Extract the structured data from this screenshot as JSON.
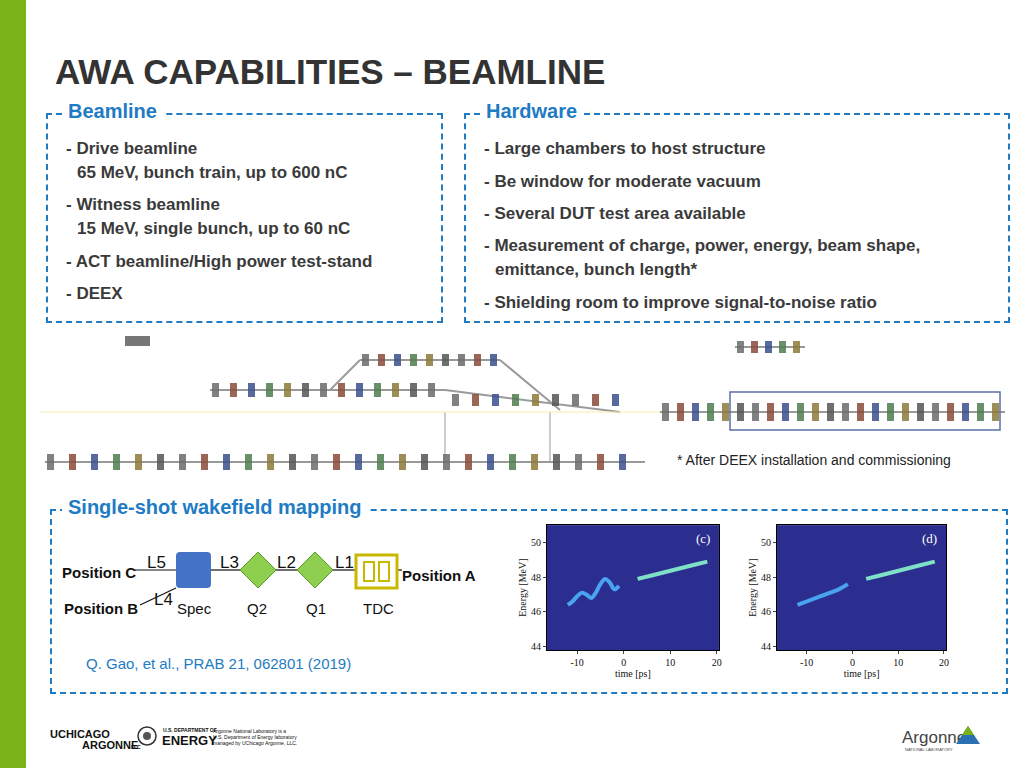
{
  "header": {
    "title": "AWA CAPABILITIES – BEAMLINE"
  },
  "beamline": {
    "title": "Beamline",
    "items": [
      {
        "lines": [
          "- Drive beamline",
          "65 MeV, bunch train, up to 600 nC"
        ]
      },
      {
        "lines": [
          "- Witness beamline",
          "15 MeV, single bunch, up to 60 nC"
        ]
      },
      {
        "lines": [
          "- ACT beamline/High power test-stand"
        ]
      },
      {
        "lines": [
          "- DEEX"
        ]
      }
    ]
  },
  "hardware": {
    "title": "Hardware",
    "items": [
      {
        "lines": [
          "- Large chambers to host structure"
        ]
      },
      {
        "lines": [
          "- Be window for moderate vacuum"
        ]
      },
      {
        "lines": [
          "- Several DUT test area available"
        ]
      },
      {
        "lines": [
          "- Measurement of charge, power, energy, beam shape,",
          "emittance, bunch length*"
        ]
      },
      {
        "lines": [
          "- Shielding room to improve signal-to-noise ratio"
        ]
      }
    ]
  },
  "footnote": "* After DEEX installation and commissioning",
  "wakefield": {
    "title": "Single-shot wakefield mapping",
    "diagram": {
      "positions": {
        "c": "Position C",
        "b": "Position B",
        "a": "Position A"
      },
      "segments": {
        "l5": "L5",
        "l4": "L4",
        "l3": "L3",
        "l2": "L2",
        "l1": "L1"
      },
      "elements": {
        "spec": "Spec",
        "q2": "Q2",
        "q1": "Q1",
        "tdc": "TDC"
      }
    },
    "citation": "Q. Gao, et al., PRAB 21, 062801 (2019)"
  },
  "chart_data": [
    {
      "type": "line",
      "title": "(c)",
      "xlabel": "time [ps]",
      "ylabel": "Energy [MeV]",
      "xlim": [
        -16.5,
        20.5
      ],
      "ylim": [
        43.8,
        51
      ],
      "xticks": [
        -10,
        0,
        10,
        20
      ],
      "yticks": [
        44,
        46,
        48,
        50
      ],
      "grid": false,
      "series": [
        {
          "color": "#4aa3f0",
          "x": [
            -12,
            -11,
            -10,
            -9,
            -8,
            -7,
            -6,
            -5,
            -4,
            -3,
            -2,
            -1
          ],
          "values": [
            46.4,
            46.6,
            46.9,
            47.1,
            47.0,
            46.8,
            47.1,
            47.6,
            47.9,
            47.7,
            47.3,
            47.5
          ]
        },
        {
          "color": "#7fe0c8",
          "x": [
            3,
            6,
            9,
            12,
            15,
            18
          ],
          "values": [
            47.9,
            48.1,
            48.3,
            48.5,
            48.7,
            48.9
          ]
        }
      ]
    },
    {
      "type": "line",
      "title": "(d)",
      "xlabel": "time [ps]",
      "ylabel": "Energy [MeV]",
      "xlim": [
        -16.5,
        20.5
      ],
      "ylim": [
        43.8,
        51
      ],
      "xticks": [
        -10,
        0,
        10,
        20
      ],
      "yticks": [
        44,
        46,
        48,
        50
      ],
      "grid": false,
      "series": [
        {
          "color": "#4aa3f0",
          "x": [
            -12,
            -9,
            -6,
            -3,
            -1
          ],
          "values": [
            46.4,
            46.7,
            47.0,
            47.3,
            47.6
          ]
        },
        {
          "color": "#7fe0c8",
          "x": [
            3,
            6,
            9,
            12,
            15,
            18
          ],
          "values": [
            47.9,
            48.1,
            48.3,
            48.5,
            48.7,
            48.9
          ]
        }
      ]
    }
  ],
  "footer": {
    "uchicago": [
      "UCHICAGO",
      "ARGONNE",
      "LLC"
    ],
    "doe": [
      "U.S. DEPARTMENT OF",
      "ENERGY"
    ],
    "note": [
      "Argonne National Laboratory is a",
      "U.S. Department of Energy laboratory",
      "managed by UChicago Argonne, LLC."
    ],
    "argonne": [
      "Argonne",
      "NATIONAL LABORATORY"
    ]
  }
}
